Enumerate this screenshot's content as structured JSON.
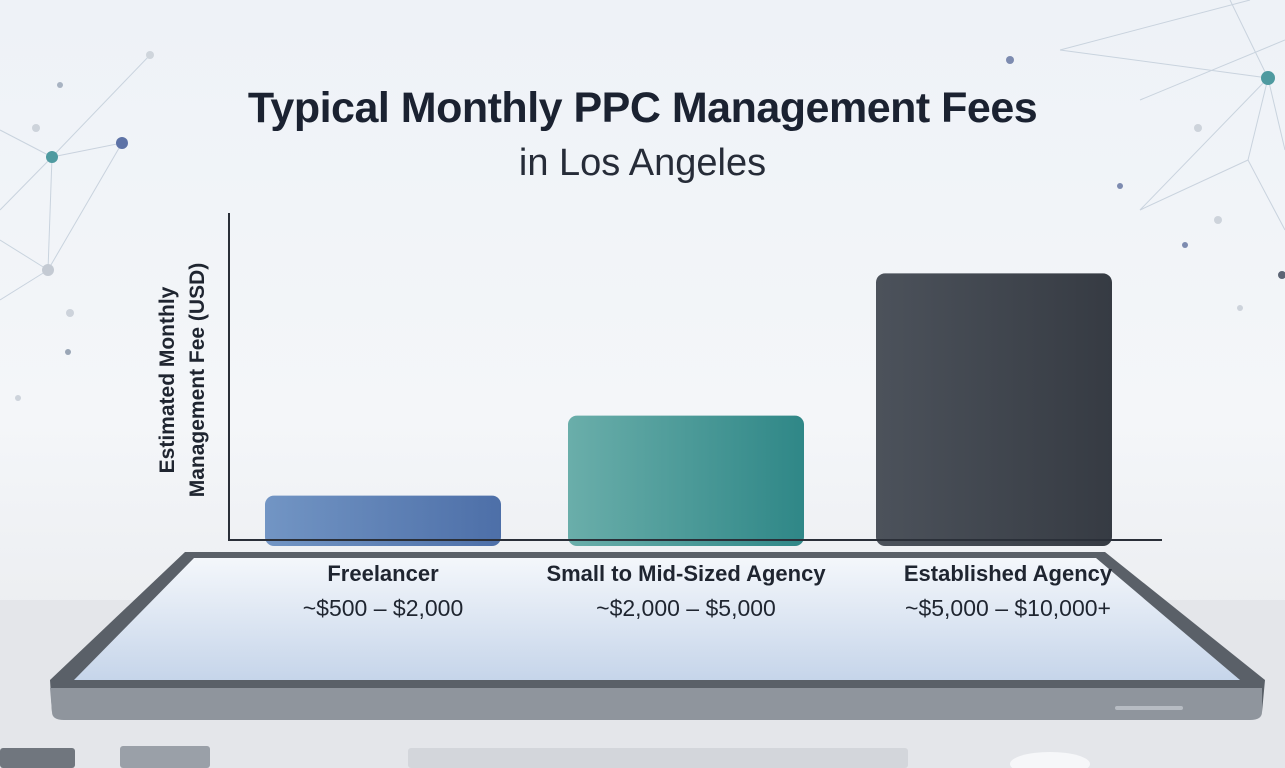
{
  "chart_data": {
    "type": "bar",
    "title": "Typical Monthly PPC Management Fees",
    "subtitle": "in Los Angeles",
    "ylabel": "Estimated Monthly Management Fee (USD)",
    "ylabel_lines": [
      "Estimated Monthly",
      "Management Fee (USD)"
    ],
    "xlabel": "",
    "categories": [
      "Freelancer",
      "Small to Mid-Sized Agency",
      "Established Agency"
    ],
    "range_labels": [
      "~$500 – $2,000",
      "~$2,000 – $5,000",
      "~$5,000 – $10,000+"
    ],
    "values": [
      1250,
      3500,
      7500
    ],
    "ylim": [
      0,
      9200
    ],
    "grid": false,
    "legend": "none",
    "colors": [
      "#5f84b6",
      "#3e9897",
      "#3d434c"
    ]
  }
}
